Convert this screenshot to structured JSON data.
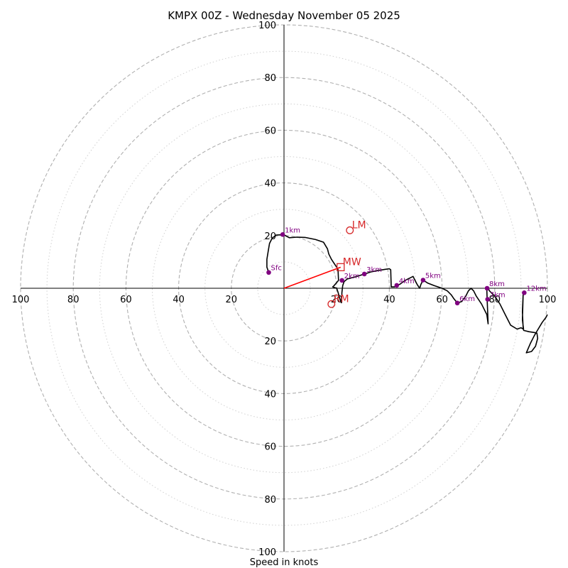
{
  "chart_data": {
    "type": "hodograph",
    "title": "KMPX 00Z - Wednesday November 05 2025",
    "xlabel": "Speed in knots",
    "max_speed": 100,
    "major_rings": [
      20,
      40,
      60,
      80,
      100
    ],
    "minor_rings": [
      10,
      30,
      50,
      70,
      90
    ],
    "x_tick_labels": [
      "100",
      "80",
      "60",
      "40",
      "20",
      "20",
      "40",
      "60",
      "80",
      "100"
    ],
    "y_tick_labels_top": [
      "20",
      "40",
      "60",
      "80",
      "100"
    ],
    "y_tick_labels_bottom": [
      "20",
      "40",
      "60",
      "80",
      "100"
    ],
    "colors": {
      "trace": "#000000",
      "height_marker": "#800080",
      "motion": "#d62728",
      "shear_vector": "#ff0000",
      "major_ring": "#b0b0b0",
      "minor_ring": "#d0d0d0"
    },
    "trace": [
      [
        -5.8,
        6.0
      ],
      [
        -6.5,
        8.0
      ],
      [
        -6.5,
        11.0
      ],
      [
        -6.0,
        14.0
      ],
      [
        -5.5,
        17.0
      ],
      [
        -4.5,
        19.0
      ],
      [
        -3.0,
        20.2
      ],
      [
        -1.0,
        20.3
      ],
      [
        0.5,
        20.0
      ],
      [
        2.0,
        19.2
      ],
      [
        5.0,
        19.4
      ],
      [
        8.0,
        19.3
      ],
      [
        12.0,
        18.5
      ],
      [
        15.0,
        17.5
      ],
      [
        16.5,
        15.0
      ],
      [
        17.0,
        13.0
      ],
      [
        18.0,
        11.0
      ],
      [
        19.0,
        9.5
      ],
      [
        20.0,
        8.0
      ],
      [
        20.5,
        7.0
      ],
      [
        20.7,
        3.0
      ],
      [
        19.0,
        1.0
      ],
      [
        18.5,
        0.5
      ],
      [
        20.0,
        0.0
      ],
      [
        20.5,
        -1.5
      ],
      [
        21.2,
        -4.0
      ],
      [
        21.8,
        -5.5
      ],
      [
        22.0,
        -1.5
      ],
      [
        22.3,
        1.0
      ],
      [
        22.8,
        2.5
      ],
      [
        24.0,
        3.5
      ],
      [
        27.0,
        4.3
      ],
      [
        30.5,
        5.4
      ],
      [
        33.0,
        6.2
      ],
      [
        36.0,
        6.8
      ],
      [
        38.5,
        7.2
      ],
      [
        40.0,
        7.4
      ],
      [
        40.5,
        7.0
      ],
      [
        40.7,
        0.5
      ],
      [
        42.0,
        0.5
      ],
      [
        42.8,
        1.1
      ],
      [
        44.0,
        1.5
      ],
      [
        46.0,
        3.0
      ],
      [
        48.0,
        4.0
      ],
      [
        49.0,
        4.5
      ],
      [
        49.5,
        3.5
      ],
      [
        50.5,
        1.5
      ],
      [
        51.5,
        0.0
      ],
      [
        52.0,
        1.5
      ],
      [
        52.8,
        3.1
      ],
      [
        54.5,
        2.0
      ],
      [
        57.0,
        1.0
      ],
      [
        60.0,
        0.0
      ],
      [
        62.0,
        -1.0
      ],
      [
        63.5,
        -2.5
      ],
      [
        64.5,
        -4.0
      ],
      [
        65.8,
        -5.6
      ],
      [
        67.5,
        -5.0
      ],
      [
        69.0,
        -3.0
      ],
      [
        70.0,
        -1.0
      ],
      [
        71.0,
        0.0
      ],
      [
        72.0,
        -1.0
      ],
      [
        73.0,
        -3.0
      ],
      [
        75.0,
        -6.0
      ],
      [
        77.0,
        -10.0
      ],
      [
        77.5,
        -13.5
      ],
      [
        77.2,
        -6.0
      ],
      [
        77.0,
        -1.0
      ],
      [
        77.1,
        0.0
      ],
      [
        77.3,
        0.5
      ],
      [
        78.0,
        -1.0
      ],
      [
        79.0,
        -2.0
      ],
      [
        80.0,
        -3.0
      ],
      [
        82.0,
        -6.0
      ],
      [
        84.0,
        -10.0
      ],
      [
        86.0,
        -14.0
      ],
      [
        88.5,
        -15.5
      ],
      [
        90.0,
        -15.0
      ],
      [
        90.8,
        -15.5
      ],
      [
        90.5,
        -9.0
      ],
      [
        90.8,
        -1.7
      ],
      [
        90.5,
        -12.0
      ],
      [
        91.0,
        -16.0
      ],
      [
        93.0,
        -16.5
      ],
      [
        95.0,
        -16.8
      ],
      [
        96.0,
        -17.0
      ],
      [
        96.3,
        -19.0
      ],
      [
        95.5,
        -22.0
      ],
      [
        94.0,
        -24.0
      ],
      [
        92.0,
        -24.5
      ],
      [
        93.5,
        -21.0
      ],
      [
        95.0,
        -18.0
      ],
      [
        96.5,
        -15.5
      ],
      [
        98.0,
        -13.0
      ],
      [
        99.5,
        -11.0
      ],
      [
        100.0,
        -10.0
      ]
    ],
    "height_markers": [
      {
        "label": "Sfc",
        "u": -5.8,
        "v": 6.0
      },
      {
        "label": "1km",
        "u": -0.5,
        "v": 20.4
      },
      {
        "label": "2km",
        "u": 22.0,
        "v": 3.0
      },
      {
        "label": "3km",
        "u": 30.5,
        "v": 5.4
      },
      {
        "label": "4km",
        "u": 42.8,
        "v": 1.1
      },
      {
        "label": "5km",
        "u": 52.8,
        "v": 3.1
      },
      {
        "label": "6km",
        "u": 65.8,
        "v": -5.6
      },
      {
        "label": "7km",
        "u": 77.3,
        "v": -4.2
      },
      {
        "label": "8km",
        "u": 77.1,
        "v": 0.0
      },
      {
        "label": "12km",
        "u": 91.2,
        "v": -1.7
      }
    ],
    "motion_markers": [
      {
        "label": "LM",
        "u": 25.0,
        "v": 22.0,
        "shape": "circle"
      },
      {
        "label": "MW",
        "u": 21.5,
        "v": 8.0,
        "shape": "square"
      },
      {
        "label": "RM",
        "u": 18.0,
        "v": -6.0,
        "shape": "circle"
      }
    ],
    "shear_vector": {
      "from": [
        0,
        0
      ],
      "to": [
        21.5,
        8.0
      ]
    }
  }
}
